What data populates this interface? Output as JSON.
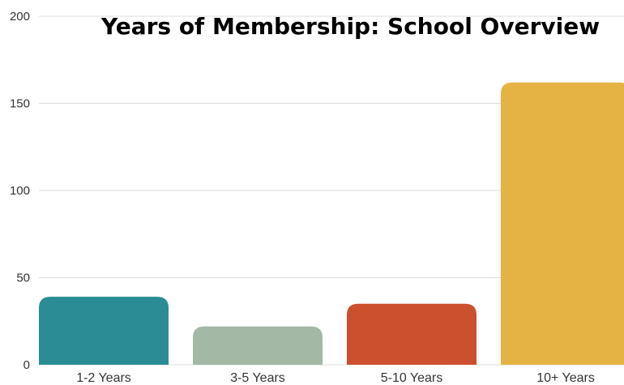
{
  "chart_data": {
    "type": "bar",
    "title": "Years of Membership: School Overview",
    "categories": [
      "1-2 Years",
      "3-5 Years",
      "5-10 Years",
      "10+ Years"
    ],
    "values": [
      39,
      22,
      35,
      162
    ],
    "colors": [
      "#2a8c95",
      "#a3b8a5",
      "#cc4f2e",
      "#e5b244"
    ],
    "xlabel": "",
    "ylabel": "",
    "ylim": [
      0,
      200
    ],
    "yticks": [
      0,
      50,
      100,
      150,
      200
    ],
    "grid": true,
    "legend": "none"
  }
}
